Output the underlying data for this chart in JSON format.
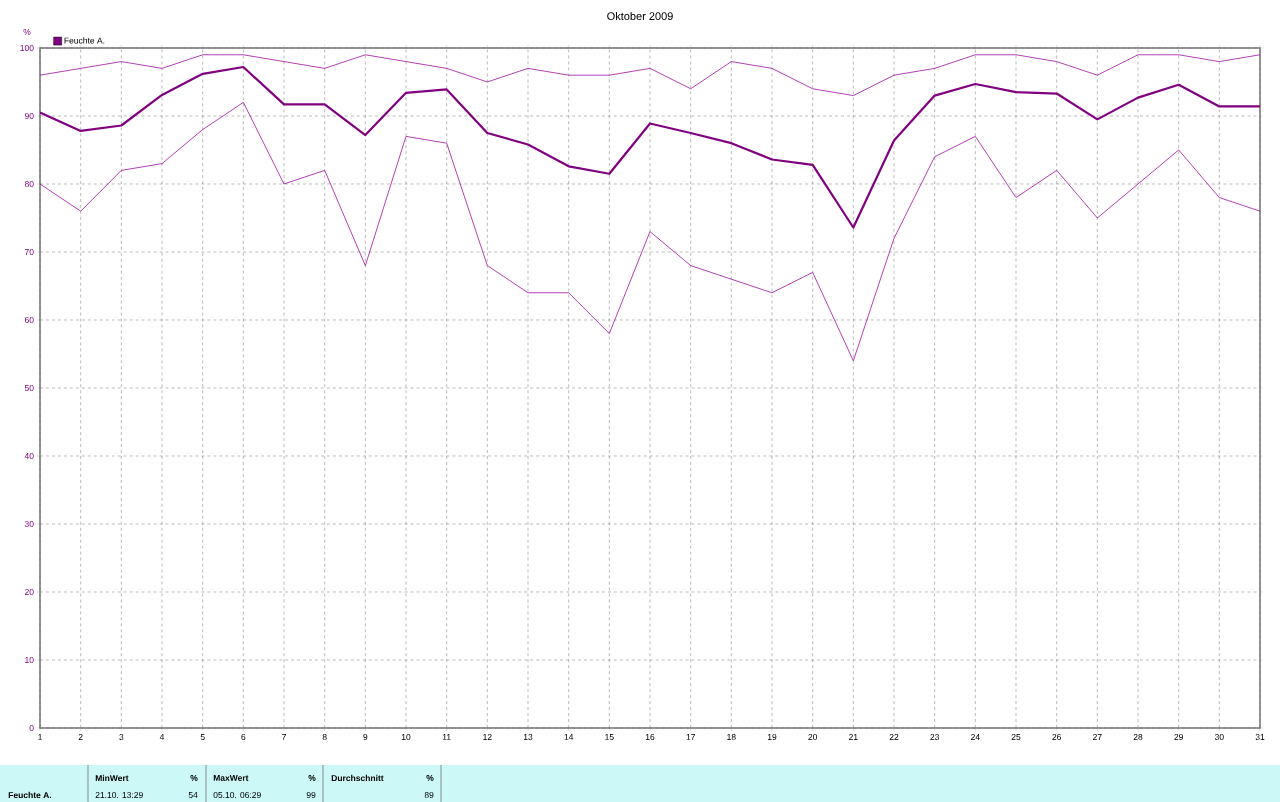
{
  "chart_data": {
    "type": "line",
    "title": "Oktober 2009",
    "ylabel": "%",
    "x": [
      1,
      2,
      3,
      4,
      5,
      6,
      7,
      8,
      9,
      10,
      11,
      12,
      13,
      14,
      15,
      16,
      17,
      18,
      19,
      20,
      21,
      22,
      23,
      24,
      25,
      26,
      27,
      28,
      29,
      30,
      31
    ],
    "series": [
      {
        "color": "#990099",
        "values": [
          96,
          97,
          98,
          97,
          99,
          99,
          98,
          97,
          99,
          98,
          97,
          95,
          97,
          96,
          96,
          97,
          94,
          98,
          97,
          94,
          93,
          96,
          97,
          99,
          99,
          98,
          96,
          99,
          99,
          98,
          99
        ]
      },
      {
        "name": "Feuchte A.",
        "color": "#800080",
        "values": [
          90.5,
          87.8,
          88.6,
          93.1,
          96.2,
          97.2,
          91.7,
          91.7,
          87.2,
          93.4,
          93.9,
          87.5,
          85.8,
          82.6,
          81.5,
          88.9,
          87.5,
          86.0,
          83.6,
          82.8,
          73.6,
          86.4,
          93.0,
          94.7,
          93.5,
          93.3,
          89.5,
          92.7,
          94.6,
          91.4,
          91.4
        ]
      },
      {
        "color": "#990099",
        "values": [
          80,
          76,
          82,
          83,
          88,
          92,
          80,
          82,
          68,
          87,
          86,
          68,
          64,
          64,
          58,
          73,
          68,
          66,
          64,
          67,
          54,
          72,
          84,
          87,
          78,
          82,
          75,
          80,
          85,
          78,
          76
        ]
      }
    ],
    "xlim": [
      1,
      31
    ],
    "xticks": [
      1,
      2,
      3,
      4,
      5,
      6,
      7,
      8,
      9,
      10,
      11,
      12,
      13,
      14,
      15,
      16,
      17,
      18,
      19,
      20,
      21,
      22,
      23,
      24,
      25,
      26,
      27,
      28,
      29,
      30,
      31
    ],
    "ylim": [
      0,
      100
    ],
    "yticks": [
      0,
      10,
      20,
      30,
      40,
      50,
      60,
      70,
      80,
      90,
      100
    ],
    "grid": true,
    "legend": "top left",
    "marker": "none",
    "line_style": "solid",
    "annotations": [
      "Feuchte A.",
      "MinWert",
      "%",
      "21.10.  13:29",
      "54",
      "MaxWert",
      "%",
      "05.10.  06:29",
      "99",
      "Durchschnitt",
      "%",
      "89"
    ]
  }
}
